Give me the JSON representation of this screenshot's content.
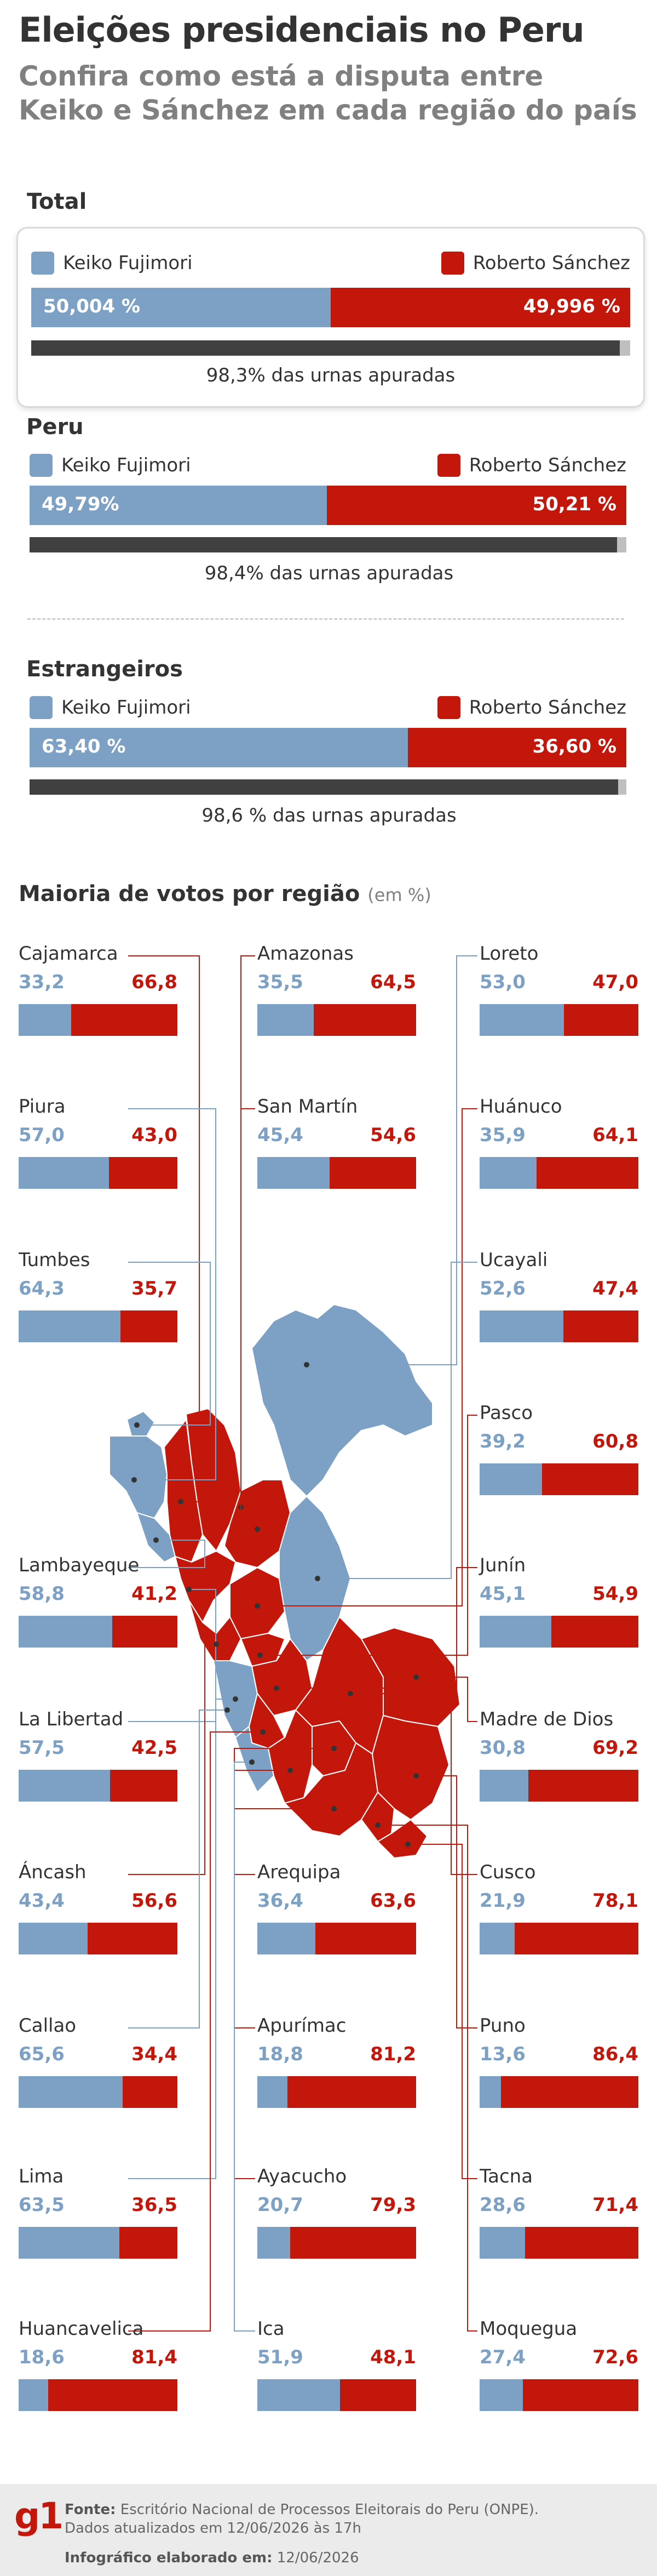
{
  "title": "Eleições presidenciais no Peru",
  "subtitle": "Confira como está a disputa entre Keiko e Sánchez em cada região do país",
  "colors": {
    "keiko": "#7da1c4",
    "sanchez": "#c4170c",
    "progress_fill": "#404040",
    "progress_track": "#bfbfbf"
  },
  "legend": {
    "keiko": "Keiko Fujimori",
    "sanchez": "Roberto Sánchez"
  },
  "sections": [
    {
      "id": "total",
      "title": "Total",
      "keiko_label": "50,004 %",
      "sanchez_label": "49,996 %",
      "keiko_value": 50.004,
      "progress_value": 98.3,
      "progress_label": "98,3% das urnas apuradas"
    },
    {
      "id": "peru",
      "title": "Peru",
      "keiko_label": "49,79%",
      "sanchez_label": "50,21 %",
      "keiko_value": 49.79,
      "progress_value": 98.4,
      "progress_label": "98,4% das urnas apuradas"
    },
    {
      "id": "estrangeiros",
      "title": "Estrangeiros",
      "keiko_label": "63,40 %",
      "sanchez_label": "36,60 %",
      "keiko_value": 63.4,
      "progress_value": 98.6,
      "progress_label": "98,6 % das urnas apuradas"
    }
  ],
  "regions_title": "Maioria de votos por região",
  "regions_unit": "(em %)",
  "chart_data": {
    "type": "bar",
    "title": "Maioria de votos por região",
    "unit": "%",
    "stacked": true,
    "series_names": [
      "Keiko Fujimori",
      "Roberto Sánchez"
    ],
    "regions": [
      {
        "name": "Cajamarca",
        "keiko": "33,2",
        "sanchez": "66,8",
        "k": 33.2,
        "winner": "sanchez"
      },
      {
        "name": "Amazonas",
        "keiko": "35,5",
        "sanchez": "64,5",
        "k": 35.5,
        "winner": "sanchez"
      },
      {
        "name": "Loreto",
        "keiko": "53,0",
        "sanchez": "47,0",
        "k": 53.0,
        "winner": "keiko"
      },
      {
        "name": "Piura",
        "keiko": "57,0",
        "sanchez": "43,0",
        "k": 57.0,
        "winner": "keiko"
      },
      {
        "name": "San Martín",
        "keiko": "45,4",
        "sanchez": "54,6",
        "k": 45.4,
        "winner": "sanchez"
      },
      {
        "name": "Huánuco",
        "keiko": "35,9",
        "sanchez": "64,1",
        "k": 35.9,
        "winner": "sanchez"
      },
      {
        "name": "Tumbes",
        "keiko": "64,3",
        "sanchez": "35,7",
        "k": 64.3,
        "winner": "keiko"
      },
      {
        "name": "Ucayali",
        "keiko": "52,6",
        "sanchez": "47,4",
        "k": 52.6,
        "winner": "keiko"
      },
      {
        "name": "Pasco",
        "keiko": "39,2",
        "sanchez": "60,8",
        "k": 39.2,
        "winner": "sanchez"
      },
      {
        "name": "Lambayeque",
        "keiko": "58,8",
        "sanchez": "41,2",
        "k": 58.8,
        "winner": "keiko"
      },
      {
        "name": "Junín",
        "keiko": "45,1",
        "sanchez": "54,9",
        "k": 45.1,
        "winner": "sanchez"
      },
      {
        "name": "La Libertad",
        "keiko": "57,5",
        "sanchez": "42,5",
        "k": 57.5,
        "winner": "keiko"
      },
      {
        "name": "Madre de Dios",
        "keiko": "30,8",
        "sanchez": "69,2",
        "k": 30.8,
        "winner": "sanchez"
      },
      {
        "name": "Áncash",
        "keiko": "43,4",
        "sanchez": "56,6",
        "k": 43.4,
        "winner": "sanchez"
      },
      {
        "name": "Arequipa",
        "keiko": "36,4",
        "sanchez": "63,6",
        "k": 36.4,
        "winner": "sanchez"
      },
      {
        "name": "Cusco",
        "keiko": "21,9",
        "sanchez": "78,1",
        "k": 21.9,
        "winner": "sanchez"
      },
      {
        "name": "Callao",
        "keiko": "65,6",
        "sanchez": "34,4",
        "k": 65.6,
        "winner": "keiko"
      },
      {
        "name": "Apurímac",
        "keiko": "18,8",
        "sanchez": "81,2",
        "k": 18.8,
        "winner": "sanchez"
      },
      {
        "name": "Puno",
        "keiko": "13,6",
        "sanchez": "86,4",
        "k": 13.6,
        "winner": "sanchez"
      },
      {
        "name": "Lima",
        "keiko": "63,5",
        "sanchez": "36,5",
        "k": 63.5,
        "winner": "keiko"
      },
      {
        "name": "Ayacucho",
        "keiko": "20,7",
        "sanchez": "79,3",
        "k": 20.7,
        "winner": "sanchez"
      },
      {
        "name": "Tacna",
        "keiko": "28,6",
        "sanchez": "71,4",
        "k": 28.6,
        "winner": "sanchez"
      },
      {
        "name": "Huancavelica",
        "keiko": "18,6",
        "sanchez": "81,4",
        "k": 18.6,
        "winner": "sanchez"
      },
      {
        "name": "Ica",
        "keiko": "51,9",
        "sanchez": "48,1",
        "k": 51.9,
        "winner": "keiko"
      },
      {
        "name": "Moquegua",
        "keiko": "27,4",
        "sanchez": "72,6",
        "k": 27.4,
        "winner": "sanchez"
      }
    ]
  },
  "footer": {
    "logo": "g1",
    "source_label": "Fonte:",
    "source_text": "Escritório Nacional de Processos Eleitorais do Peru (ONPE).",
    "update_text": "Dados atualizados em 12/06/2026 às 17h",
    "credit_label": "Infográfico elaborado em:",
    "credit_date": "12/06/2026"
  }
}
